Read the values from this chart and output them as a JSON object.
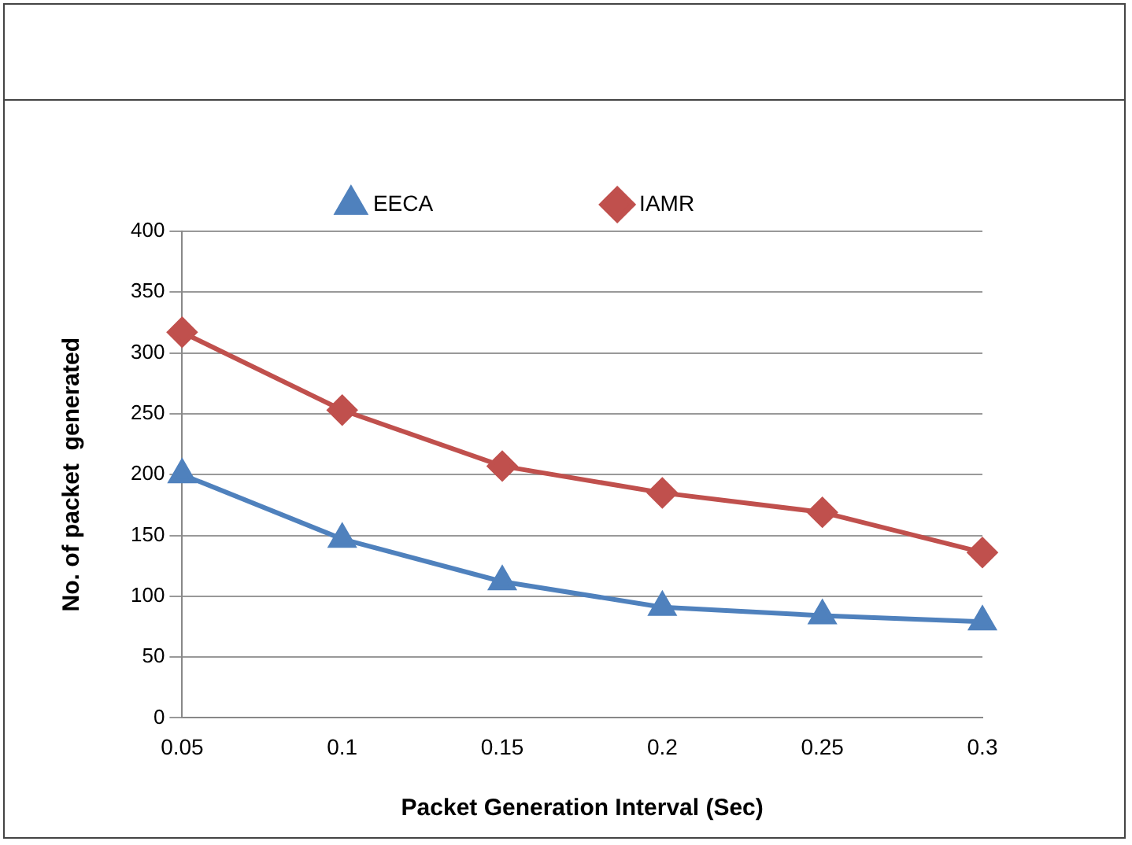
{
  "chart_data": {
    "type": "line",
    "xlabel": "Packet Generation Interval (Sec)",
    "ylabel": "No. of packet  generated",
    "categories": [
      "0.05",
      "0.1",
      "0.15",
      "0.2",
      "0.25",
      "0.3"
    ],
    "series": [
      {
        "name": "EECA",
        "color": "#4f81bd",
        "marker": "triangle",
        "values": [
          200,
          147,
          112,
          91,
          84,
          79
        ]
      },
      {
        "name": "IAMR",
        "color": "#c0504d",
        "marker": "diamond",
        "values": [
          317,
          253,
          207,
          185,
          169,
          136
        ]
      }
    ],
    "ylim": [
      0,
      400
    ],
    "yticks": [
      0,
      50,
      100,
      150,
      200,
      250,
      300,
      350,
      400
    ],
    "grid": "y",
    "legend": "top",
    "line_style": "solid"
  }
}
